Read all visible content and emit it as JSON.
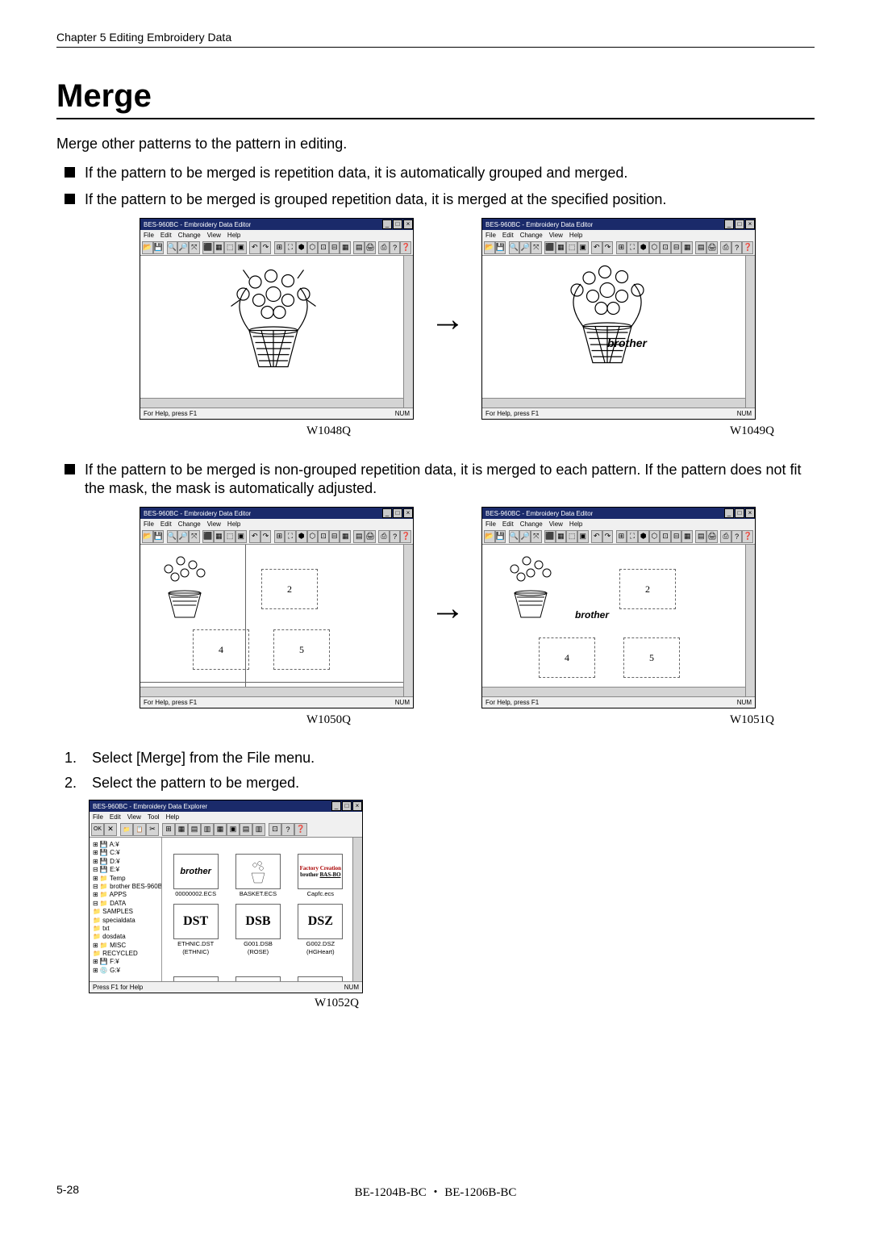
{
  "header": "Chapter 5   Editing Embroidery Data",
  "title": "Merge",
  "intro": "Merge other patterns to the pattern in editing.",
  "bullets": [
    "If the pattern to be merged is repetition data, it is automatically grouped and merged.",
    "If the pattern to be merged is grouped repetition data, it is merged at the specified position.",
    "If the pattern to be merged is non-grouped repetition data, it is merged to each pattern. If the pattern does not fit the mask, the mask is automatically adjusted."
  ],
  "captions": {
    "r1_left": "W1048Q",
    "r1_right": "W1049Q",
    "r2_left": "W1050Q",
    "r2_right": "W1051Q",
    "file_browser": "W1052Q"
  },
  "steps": [
    "Select [Merge] from the File menu.",
    "Select the pattern to be merged."
  ],
  "editor": {
    "title": "BES-960BC - Embroidery Data Editor",
    "menus": [
      "File",
      "Edit",
      "Change",
      "View",
      "Help"
    ],
    "status_left": "For Help, press F1",
    "status_right": "NUM",
    "brand": "brother"
  },
  "toolbar_glyphs": [
    "📂",
    "💾",
    "🔍",
    "🔎",
    "⤧",
    "⬛",
    "▦",
    "⬚",
    "▣",
    "↶",
    "↷",
    "⊞",
    "⛶",
    "⬢",
    "⬡",
    "⊡",
    "⊟",
    "▦",
    "▤",
    "🖨",
    "⎙",
    "?",
    "❓"
  ],
  "file_browser": {
    "title": "BES-960BC - Embroidery Data Explorer",
    "menus": [
      "File",
      "Edit",
      "View",
      "Tool",
      "Help"
    ],
    "toolbar_glyphs": [
      "OK",
      "✕",
      "📁",
      "📋",
      "✂",
      "⊞",
      "▦",
      "▤",
      "▥",
      "▦",
      "▣",
      "▤",
      "▥",
      "⊡",
      "?",
      "❓"
    ],
    "tree": [
      "⊞ 💾 A:¥",
      "⊞ 💾 C:¥",
      "⊞ 💾 D:¥",
      "⊟ 💾 E:¥",
      "  ⊞ 📁 Temp",
      "  ⊟ 📁 brother BES-960BC",
      "    ⊞ 📁 APPS",
      "    ⊟ 📁 DATA",
      "      📁 SAMPLES",
      "      📁 specialdata",
      "      📁 txt",
      "    📁 dosdata",
      "  ⊞ 📁 MISC",
      "  📁 RECYCLED",
      "⊞ 💾 F:¥",
      "⊞ 💿 G:¥"
    ],
    "thumbs": [
      {
        "visual": "brother",
        "label1": "00000002.ECS",
        "label2": ""
      },
      {
        "visual": "basket",
        "label1": "BASKET.ECS",
        "label2": ""
      },
      {
        "visual": "factory",
        "label1": "Capfc.ecs",
        "label2": ""
      },
      {
        "visual": "DST",
        "label1": "ETHNIC.DST",
        "label2": "(ETHNIC)"
      },
      {
        "visual": "DSB",
        "label1": "G001.DSB",
        "label2": "(ROSE)"
      },
      {
        "visual": "DSZ",
        "label1": "G002.DSZ",
        "label2": "(HGHeart)"
      },
      {
        "visual": "family",
        "label1": "",
        "label2": ""
      },
      {
        "visual": "pattern",
        "label1": "",
        "label2": ""
      },
      {
        "visual": "flower",
        "label1": "",
        "label2": ""
      }
    ],
    "status_left": "Press F1 for Help",
    "status_right": "NUM"
  },
  "colors": {
    "titlebar": "#1a2a6a",
    "panel": "#f0f0f0",
    "button": "#d4d4d4",
    "canvas": "#ffffff",
    "text": "#000000"
  },
  "footer": {
    "left": "5-28",
    "mid": "BE-1204B-BC ・ BE-1206B-BC"
  }
}
